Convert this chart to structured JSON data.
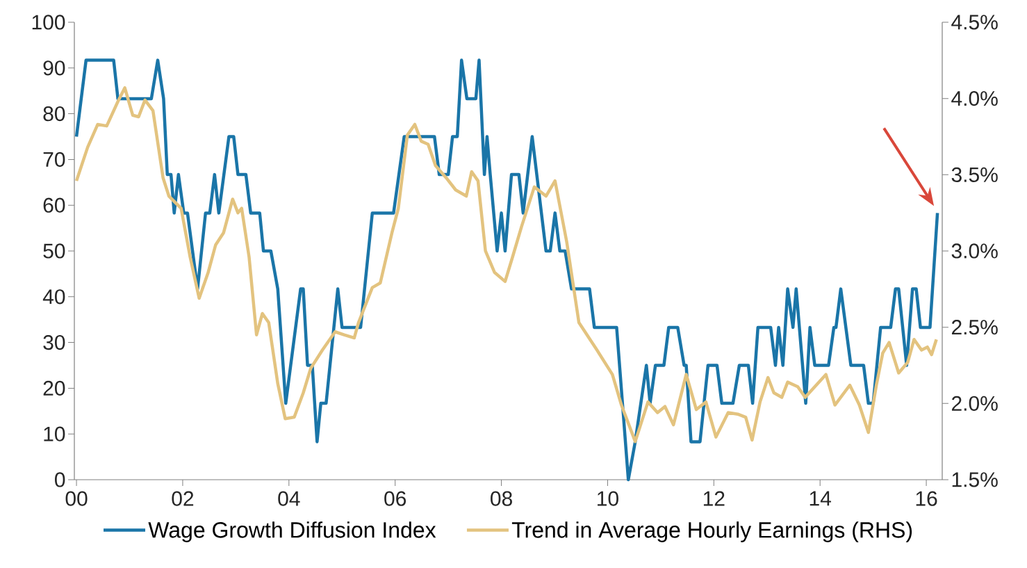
{
  "chart_data": {
    "type": "line",
    "legend": "bottom",
    "marker": "none",
    "line_style": "solid",
    "xlim": [
      1999.96,
      2016.3
    ],
    "xticks": [
      {
        "value": 2000,
        "label": "00"
      },
      {
        "value": 2002,
        "label": "02"
      },
      {
        "value": 2004,
        "label": "04"
      },
      {
        "value": 2006,
        "label": "06"
      },
      {
        "value": 2008,
        "label": "08"
      },
      {
        "value": 2010,
        "label": "10"
      },
      {
        "value": 2012,
        "label": "12"
      },
      {
        "value": 2014,
        "label": "14"
      },
      {
        "value": 2016,
        "label": "16"
      }
    ],
    "ylim": [
      0,
      100
    ],
    "yticks": [
      0,
      10,
      20,
      30,
      40,
      50,
      60,
      70,
      80,
      90,
      100
    ],
    "y2lim": [
      1.5,
      4.5
    ],
    "y2ticks": [
      {
        "value": 1.5,
        "label": "1.5%"
      },
      {
        "value": 2.0,
        "label": "2.0%"
      },
      {
        "value": 2.5,
        "label": "2.5%"
      },
      {
        "value": 3.0,
        "label": "3.0%"
      },
      {
        "value": 3.5,
        "label": "3.5%"
      },
      {
        "value": 4.0,
        "label": "4.0%"
      },
      {
        "value": 4.5,
        "label": "4.5%"
      }
    ],
    "series": [
      {
        "name": "Wage Growth Diffusion Index",
        "color": "#1a75a8",
        "x": [
          2000.0,
          2000.18,
          2000.7,
          2000.78,
          2001.41,
          2001.53,
          2001.64,
          2001.71,
          2001.78,
          2001.84,
          2001.92,
          2002.02,
          2002.09,
          2002.28,
          2002.43,
          2002.51,
          2002.6,
          2002.68,
          2002.87,
          2002.96,
          2003.04,
          2003.19,
          2003.28,
          2003.45,
          2003.52,
          2003.66,
          2003.79,
          2003.94,
          2004.22,
          2004.27,
          2004.35,
          2004.44,
          2004.53,
          2004.6,
          2004.7,
          2004.92,
          2005.0,
          2005.35,
          2005.57,
          2005.97,
          2006.17,
          2006.74,
          2006.83,
          2007.0,
          2007.08,
          2007.17,
          2007.25,
          2007.35,
          2007.52,
          2007.58,
          2007.68,
          2007.73,
          2007.79,
          2007.92,
          2008.0,
          2008.07,
          2008.19,
          2008.33,
          2008.41,
          2008.58,
          2008.84,
          2008.92,
          2009.01,
          2009.1,
          2009.2,
          2009.32,
          2009.66,
          2009.75,
          2010.17,
          2010.39,
          2010.52,
          2010.73,
          2010.8,
          2010.9,
          2011.06,
          2011.15,
          2011.32,
          2011.44,
          2011.48,
          2011.57,
          2011.74,
          2011.89,
          2012.06,
          2012.15,
          2012.36,
          2012.48,
          2012.65,
          2012.73,
          2012.83,
          2013.07,
          2013.16,
          2013.22,
          2013.3,
          2013.39,
          2013.49,
          2013.55,
          2013.73,
          2013.81,
          2013.9,
          2014.16,
          2014.26,
          2014.3,
          2014.39,
          2014.58,
          2014.82,
          2014.91,
          2015.0,
          2015.14,
          2015.33,
          2015.42,
          2015.48,
          2015.63,
          2015.74,
          2015.81,
          2015.89,
          2016.07,
          2016.21
        ],
        "values": [
          75,
          91.7,
          91.7,
          83.3,
          83.3,
          91.7,
          83.3,
          66.7,
          66.7,
          58.3,
          66.7,
          58.3,
          58.3,
          41.7,
          58.3,
          58.3,
          66.7,
          58.3,
          75,
          75,
          66.7,
          66.7,
          58.3,
          58.3,
          50,
          50,
          41.7,
          16.7,
          41.7,
          41.7,
          25,
          25,
          8.3,
          16.7,
          16.7,
          41.7,
          33.3,
          33.3,
          58.3,
          58.3,
          75,
          75,
          66.7,
          66.7,
          75,
          75,
          91.7,
          83.3,
          83.3,
          91.7,
          66.7,
          75,
          66.7,
          50,
          58.3,
          50,
          66.7,
          66.7,
          58.3,
          75,
          50,
          50,
          58.3,
          50,
          50,
          41.7,
          41.7,
          33.3,
          33.3,
          0,
          8.3,
          25,
          16.7,
          25,
          25,
          33.3,
          33.3,
          25,
          25,
          8.3,
          8.3,
          25,
          25,
          16.7,
          16.7,
          25,
          25,
          16.7,
          33.3,
          33.3,
          25,
          33.3,
          25,
          41.7,
          33.3,
          41.7,
          16.7,
          33.3,
          25,
          25,
          33.3,
          33.3,
          41.7,
          25,
          25,
          16.7,
          16.7,
          33.3,
          33.3,
          41.7,
          41.7,
          25,
          41.7,
          41.7,
          33.3,
          33.3,
          58.3
        ]
      },
      {
        "name": "Trend in Average Hourly Earnings (RHS)",
        "color": "#e3c37f",
        "axis": "y2",
        "x": [
          2000.0,
          2000.21,
          2000.4,
          2000.57,
          2000.78,
          2000.91,
          2001.06,
          2001.17,
          2001.29,
          2001.44,
          2001.63,
          2001.74,
          2001.97,
          2002.14,
          2002.31,
          2002.48,
          2002.62,
          2002.77,
          2002.94,
          2003.04,
          2003.11,
          2003.25,
          2003.39,
          2003.5,
          2003.62,
          2003.79,
          2003.93,
          2004.1,
          2004.27,
          2004.41,
          2004.63,
          2004.87,
          2005.04,
          2005.23,
          2005.31,
          2005.57,
          2005.72,
          2005.94,
          2006.06,
          2006.23,
          2006.37,
          2006.49,
          2006.62,
          2006.76,
          2006.96,
          2007.14,
          2007.34,
          2007.44,
          2007.56,
          2007.7,
          2007.87,
          2008.07,
          2008.21,
          2008.38,
          2008.62,
          2008.84,
          2009.01,
          2009.23,
          2009.46,
          2009.8,
          2010.09,
          2010.26,
          2010.52,
          2010.76,
          2010.94,
          2011.08,
          2011.24,
          2011.48,
          2011.67,
          2011.85,
          2012.04,
          2012.27,
          2012.45,
          2012.6,
          2012.72,
          2012.87,
          2013.02,
          2013.13,
          2013.28,
          2013.39,
          2013.58,
          2013.72,
          2013.85,
          2014.11,
          2014.28,
          2014.56,
          2014.74,
          2014.91,
          2015.06,
          2015.18,
          2015.3,
          2015.48,
          2015.65,
          2015.77,
          2015.91,
          2016.02,
          2016.1,
          2016.19
        ],
        "values": [
          3.46,
          3.68,
          3.83,
          3.82,
          3.98,
          4.07,
          3.89,
          3.88,
          3.99,
          3.92,
          3.48,
          3.36,
          3.28,
          2.96,
          2.69,
          2.86,
          3.04,
          3.12,
          3.34,
          3.25,
          3.28,
          2.96,
          2.45,
          2.59,
          2.53,
          2.13,
          1.9,
          1.91,
          2.07,
          2.23,
          2.35,
          2.47,
          2.45,
          2.43,
          2.53,
          2.76,
          2.79,
          3.12,
          3.28,
          3.76,
          3.83,
          3.72,
          3.7,
          3.56,
          3.48,
          3.4,
          3.36,
          3.52,
          3.46,
          3.0,
          2.86,
          2.8,
          2.96,
          3.16,
          3.42,
          3.36,
          3.46,
          3.06,
          2.53,
          2.35,
          2.19,
          1.99,
          1.75,
          2.01,
          1.94,
          1.98,
          1.86,
          2.19,
          1.96,
          2.01,
          1.78,
          1.94,
          1.93,
          1.91,
          1.76,
          2.01,
          2.17,
          2.07,
          2.04,
          2.14,
          2.11,
          2.04,
          2.09,
          2.19,
          1.99,
          2.12,
          1.99,
          1.81,
          2.12,
          2.33,
          2.4,
          2.2,
          2.27,
          2.42,
          2.35,
          2.37,
          2.32,
          2.42
        ]
      }
    ]
  }
}
